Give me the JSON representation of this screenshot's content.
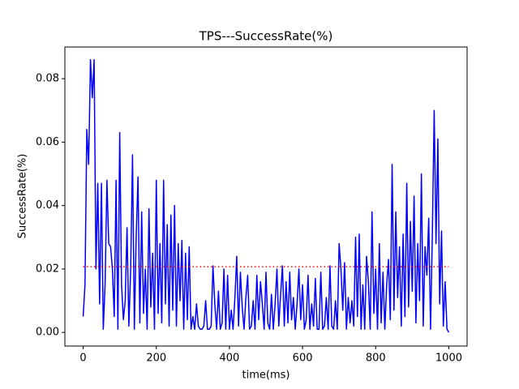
{
  "chart_data": {
    "type": "line",
    "title": "TPS---SuccessRate(%)",
    "xlabel": "time(ms)",
    "ylabel": "SuccessRate(%)",
    "xlim": [
      -50,
      1050
    ],
    "xticks": [
      0,
      200,
      400,
      600,
      800,
      1000
    ],
    "ylim": [
      -0.0043,
      0.09
    ],
    "yticks": [
      {
        "value": 0,
        "label": "0.00"
      },
      0.02,
      0.04,
      0.06,
      0.08
    ],
    "series": [
      {
        "color": "#0000ff",
        "style": "solid",
        "x": [
          0,
          5,
          10,
          15,
          20,
          25,
          30,
          35,
          40,
          45,
          50,
          55,
          60,
          65,
          70,
          75,
          80,
          85,
          90,
          95,
          100,
          105,
          110,
          115,
          120,
          125,
          130,
          135,
          140,
          145,
          150,
          155,
          160,
          165,
          170,
          175,
          180,
          185,
          190,
          195,
          200,
          205,
          210,
          215,
          220,
          225,
          230,
          235,
          240,
          245,
          250,
          255,
          260,
          265,
          270,
          275,
          280,
          285,
          290,
          295,
          300,
          305,
          310,
          315,
          320,
          325,
          330,
          335,
          340,
          345,
          350,
          355,
          360,
          365,
          370,
          375,
          380,
          385,
          390,
          395,
          400,
          405,
          410,
          415,
          420,
          425,
          430,
          435,
          440,
          445,
          450,
          455,
          460,
          465,
          470,
          475,
          480,
          485,
          490,
          495,
          500,
          505,
          510,
          515,
          520,
          525,
          530,
          535,
          540,
          545,
          550,
          555,
          560,
          565,
          570,
          575,
          580,
          585,
          590,
          595,
          600,
          605,
          610,
          615,
          620,
          625,
          630,
          635,
          640,
          645,
          650,
          655,
          660,
          665,
          670,
          675,
          680,
          685,
          690,
          695,
          700,
          705,
          710,
          715,
          720,
          725,
          730,
          735,
          740,
          745,
          750,
          755,
          760,
          765,
          770,
          775,
          780,
          785,
          790,
          795,
          800,
          805,
          810,
          815,
          820,
          825,
          830,
          835,
          840,
          845,
          850,
          855,
          860,
          865,
          870,
          875,
          880,
          885,
          890,
          895,
          900,
          905,
          910,
          915,
          920,
          925,
          930,
          935,
          940,
          945,
          950,
          955,
          960,
          965,
          970,
          975,
          980,
          985,
          990,
          995,
          1000
        ],
        "values": [
          0.005,
          0.015,
          0.064,
          0.053,
          0.086,
          0.074,
          0.086,
          0.02,
          0.047,
          0.009,
          0.047,
          0.001,
          0.015,
          0.048,
          0.028,
          0.027,
          0.02,
          0.005,
          0.048,
          0.001,
          0.063,
          0.015,
          0.004,
          0.01,
          0.033,
          0.002,
          0.02,
          0.056,
          0.001,
          0.03,
          0.049,
          0.003,
          0.038,
          0.006,
          0.02,
          0.001,
          0.039,
          0.008,
          0.025,
          0.001,
          0.048,
          0.006,
          0.028,
          0.003,
          0.048,
          0.009,
          0.034,
          0.002,
          0.037,
          0.007,
          0.04,
          0.002,
          0.028,
          0.01,
          0.029,
          0.001,
          0.025,
          0.004,
          0.027,
          0.001,
          0.005,
          0.001,
          0.009,
          0.002,
          0.001,
          0.001,
          0.002,
          0.01,
          0.001,
          0.001,
          0.002,
          0.021,
          0.009,
          0.001,
          0.013,
          0.001,
          0.003,
          0.02,
          0.001,
          0.018,
          0.001,
          0.007,
          0.001,
          0.011,
          0.024,
          0.002,
          0.019,
          0.008,
          0.001,
          0.011,
          0.018,
          0.001,
          0.002,
          0.01,
          0.001,
          0.018,
          0.004,
          0.016,
          0.009,
          0.001,
          0.019,
          0.003,
          0.001,
          0.012,
          0.001,
          0.009,
          0.02,
          0.002,
          0.012,
          0.021,
          0.002,
          0.016,
          0.003,
          0.019,
          0.004,
          0.011,
          0.001,
          0.009,
          0.02,
          0.004,
          0.015,
          0.001,
          0.004,
          0.018,
          0.001,
          0.009,
          0.002,
          0.017,
          0.001,
          0.001,
          0.019,
          0.001,
          0.002,
          0.011,
          0.001,
          0.021,
          0.002,
          0.001,
          0.01,
          0.001,
          0.028,
          0.02,
          0.007,
          0.022,
          0.001,
          0.011,
          0.003,
          0.01,
          0.002,
          0.03,
          0.005,
          0.031,
          0.001,
          0.015,
          0.001,
          0.024,
          0.016,
          0.001,
          0.038,
          0.006,
          0.02,
          0.001,
          0.028,
          0.003,
          0.019,
          0.001,
          0.015,
          0.023,
          0.004,
          0.053,
          0.007,
          0.038,
          0.011,
          0.027,
          0.002,
          0.031,
          0.005,
          0.047,
          0.008,
          0.035,
          0.013,
          0.043,
          0.003,
          0.028,
          0.01,
          0.05,
          0.002,
          0.027,
          0.018,
          0.036,
          0.001,
          0.031,
          0.07,
          0.028,
          0.061,
          0.009,
          0.032,
          0.002,
          0.016,
          0.001,
          0.0
        ]
      },
      {
        "color": "#ff0000",
        "style": "dotted",
        "x": [
          0,
          1000
        ],
        "values": [
          0.0207,
          0.0207
        ]
      }
    ]
  }
}
